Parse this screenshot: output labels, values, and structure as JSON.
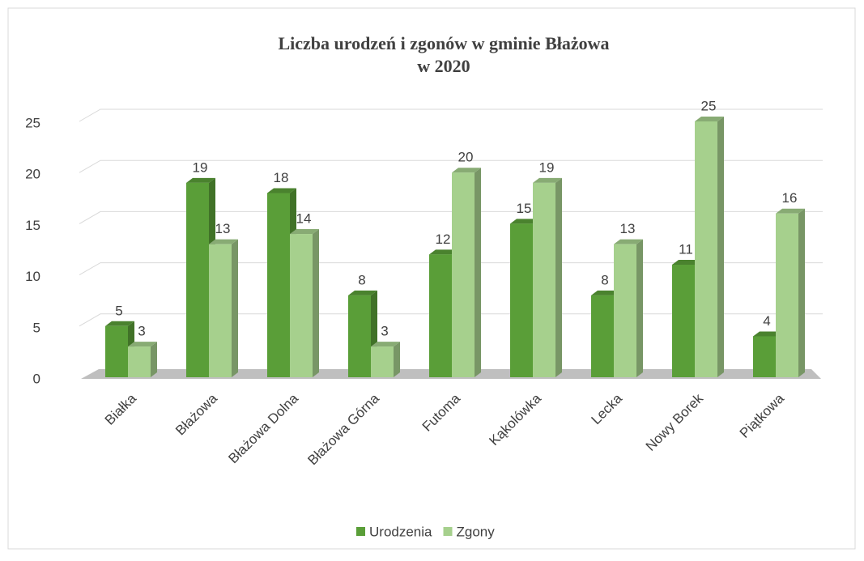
{
  "chart_data": {
    "type": "bar3d",
    "title": [
      "Liczba urodzeń i zgonów w gminie Błażowa",
      "w 2020"
    ],
    "categories": [
      "Białka",
      "Błażowa",
      "Błażowa Dolna",
      "Błażowa Górna",
      "Futoma",
      "Kąkolówka",
      "Lecka",
      "Nowy Borek",
      "Piątkowa"
    ],
    "series": [
      {
        "name": "Urodzenia",
        "color": "#5a9e38",
        "values": [
          5,
          19,
          18,
          8,
          12,
          15,
          8,
          11,
          4
        ]
      },
      {
        "name": "Zgony",
        "color": "#a6d08d",
        "values": [
          3,
          13,
          14,
          3,
          20,
          19,
          13,
          25,
          16
        ]
      }
    ],
    "ylim": [
      0,
      25
    ],
    "yticks": [
      0,
      5,
      10,
      15,
      20,
      25
    ],
    "grid": true,
    "legend": "bottom"
  }
}
